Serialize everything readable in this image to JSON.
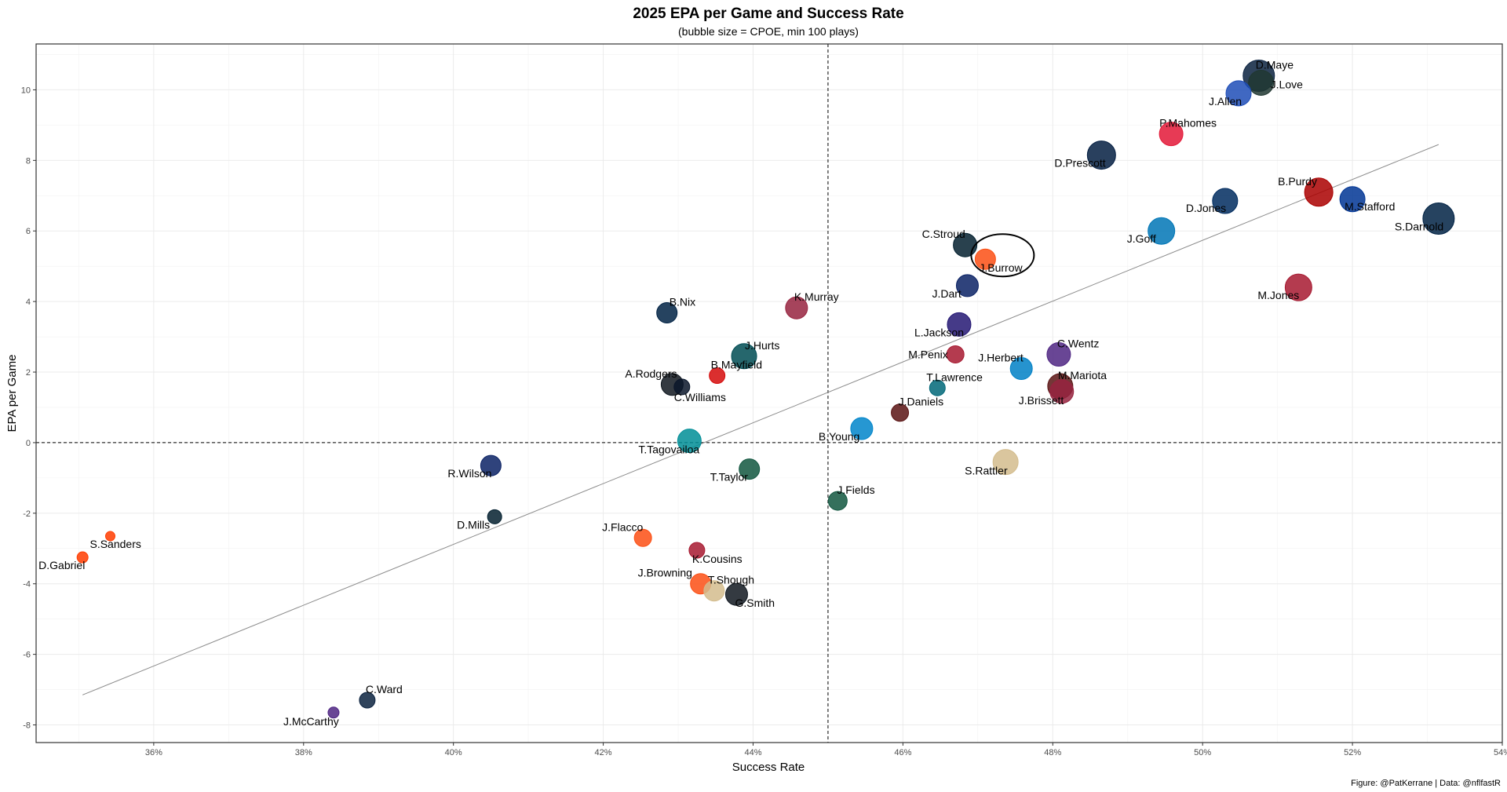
{
  "chart_data": {
    "type": "scatter",
    "title": "2025 EPA per Game and Success Rate",
    "subtitle": "(bubble size = CPOE, min 100 plays)",
    "xlabel": "Success Rate",
    "ylabel": "EPA per Game",
    "caption": "Figure: @PatKerrane | Data: @nflfastR",
    "xlim": [
      0.3443,
      0.54
    ],
    "ylim": [
      -8.5,
      11.3
    ],
    "x_ticks": [
      0.36,
      0.38,
      0.4,
      0.42,
      0.44,
      0.46,
      0.48,
      0.5,
      0.52,
      0.54
    ],
    "x_tick_labels": [
      "36%",
      "38%",
      "40%",
      "42%",
      "44%",
      "46%",
      "48%",
      "50%",
      "52%",
      "54%"
    ],
    "y_ticks": [
      -8,
      -6,
      -4,
      -2,
      0,
      2,
      4,
      6,
      8,
      10
    ],
    "y_tick_labels": [
      "-8",
      "-6",
      "-4",
      "-2",
      "0",
      "2",
      "4",
      "6",
      "8",
      "10"
    ],
    "grid": true,
    "reference_lines": {
      "vertical_x": 0.45,
      "horizontal_y": 0,
      "style": "dashed"
    },
    "trend_line": {
      "x": [
        0.3505,
        0.5315
      ],
      "y": [
        -7.15,
        8.45
      ]
    },
    "highlight": {
      "name": "J.Burrow",
      "shape": "ellipse"
    },
    "points": [
      {
        "name": "D.Maye",
        "x": 0.5075,
        "y": 10.4,
        "size": 20,
        "color": "#0B2240",
        "label_dx": -4,
        "label_dy": -9
      },
      {
        "name": "J.Love",
        "x": 0.5078,
        "y": 10.2,
        "size": 16,
        "color": "#203731",
        "label_dx": 12,
        "label_dy": 7
      },
      {
        "name": "J.Allen",
        "x": 0.5048,
        "y": 9.9,
        "size": 16,
        "color": "#1E4DB7",
        "label_dx": -38,
        "label_dy": 15
      },
      {
        "name": "P.Mahomes",
        "x": 0.4958,
        "y": 8.75,
        "size": 15,
        "color": "#E31837",
        "label_dx": -15,
        "label_dy": -9
      },
      {
        "name": "D.Prescott",
        "x": 0.4865,
        "y": 8.15,
        "size": 18,
        "color": "#041E42",
        "label_dx": -60,
        "label_dy": 15
      },
      {
        "name": "B.Purdy",
        "x": 0.5155,
        "y": 7.1,
        "size": 18,
        "color": "#AA0000",
        "label_dx": -52,
        "label_dy": -9
      },
      {
        "name": "M.Stafford",
        "x": 0.52,
        "y": 6.9,
        "size": 16,
        "color": "#003594",
        "label_dx": -10,
        "label_dy": 14
      },
      {
        "name": "D.Jones",
        "x": 0.503,
        "y": 6.85,
        "size": 16,
        "color": "#002C5F",
        "label_dx": -50,
        "label_dy": 14
      },
      {
        "name": "S.Darnold",
        "x": 0.5315,
        "y": 6.35,
        "size": 20,
        "color": "#002244",
        "label_dx": -56,
        "label_dy": 15
      },
      {
        "name": "J.Goff",
        "x": 0.4945,
        "y": 6.0,
        "size": 17,
        "color": "#0076B6",
        "label_dx": -44,
        "label_dy": 15
      },
      {
        "name": "C.Stroud",
        "x": 0.4683,
        "y": 5.6,
        "size": 15,
        "color": "#03202F",
        "label_dx": -55,
        "label_dy": -9
      },
      {
        "name": "J.Burrow",
        "x": 0.471,
        "y": 5.2,
        "size": 13,
        "color": "#FB4F14",
        "label_dx": -8,
        "label_dy": 16
      },
      {
        "name": "M.Jones",
        "x": 0.5128,
        "y": 4.4,
        "size": 17,
        "color": "#A71930",
        "label_dx": -52,
        "label_dy": 15
      },
      {
        "name": "J.Dart",
        "x": 0.4686,
        "y": 4.45,
        "size": 14,
        "color": "#0B2265",
        "label_dx": -45,
        "label_dy": 15
      },
      {
        "name": "K.Murray",
        "x": 0.4458,
        "y": 3.82,
        "size": 14,
        "color": "#97233F",
        "label_dx": -3,
        "label_dy": -9
      },
      {
        "name": "B.Nix",
        "x": 0.4285,
        "y": 3.68,
        "size": 13,
        "color": "#002244",
        "label_dx": 3,
        "label_dy": -9
      },
      {
        "name": "L.Jackson",
        "x": 0.4675,
        "y": 3.35,
        "size": 15,
        "color": "#241773",
        "label_dx": -57,
        "label_dy": 15
      },
      {
        "name": "J.Hurts",
        "x": 0.4388,
        "y": 2.45,
        "size": 16,
        "color": "#004C54",
        "label_dx": 1,
        "label_dy": -9
      },
      {
        "name": "M.Penix",
        "x": 0.467,
        "y": 2.5,
        "size": 11,
        "color": "#A71930",
        "label_dx": -60,
        "label_dy": 5
      },
      {
        "name": "C.Wentz",
        "x": 0.4808,
        "y": 2.5,
        "size": 15,
        "color": "#4F2683",
        "label_dx": -2,
        "label_dy": -9
      },
      {
        "name": "J.Herbert",
        "x": 0.4758,
        "y": 2.1,
        "size": 14,
        "color": "#0080C6",
        "label_dx": -55,
        "label_dy": -9
      },
      {
        "name": "B.Mayfield",
        "x": 0.4352,
        "y": 1.9,
        "size": 10,
        "color": "#D50A0A",
        "label_dx": -8,
        "label_dy": -9
      },
      {
        "name": "A.Rodgers",
        "x": 0.4292,
        "y": 1.65,
        "size": 14,
        "color": "#101820",
        "label_dx": -60,
        "label_dy": -9
      },
      {
        "name": "C.Williams",
        "x": 0.4305,
        "y": 1.58,
        "size": 10,
        "color": "#0B162A",
        "label_dx": -10,
        "label_dy": 18
      },
      {
        "name": "M.Mariota",
        "x": 0.481,
        "y": 1.6,
        "size": 16,
        "color": "#5A1414",
        "label_dx": -3,
        "label_dy": -9
      },
      {
        "name": "J.Brissett",
        "x": 0.4812,
        "y": 1.45,
        "size": 15,
        "color": "#97233F",
        "label_dx": -55,
        "label_dy": 16
      },
      {
        "name": "T.Lawrence",
        "x": 0.4646,
        "y": 1.55,
        "size": 10,
        "color": "#006778",
        "label_dx": -14,
        "label_dy": -9
      },
      {
        "name": "J.Daniels",
        "x": 0.4596,
        "y": 0.85,
        "size": 11,
        "color": "#5A1414",
        "label_dx": -2,
        "label_dy": -9
      },
      {
        "name": "B.Young",
        "x": 0.4545,
        "y": 0.4,
        "size": 14,
        "color": "#0085CA",
        "label_dx": -55,
        "label_dy": 15
      },
      {
        "name": "T.Tagovailoa",
        "x": 0.4315,
        "y": 0.05,
        "size": 15,
        "color": "#008E97",
        "label_dx": -65,
        "label_dy": 16
      },
      {
        "name": "R.Wilson",
        "x": 0.405,
        "y": -0.65,
        "size": 13,
        "color": "#0B2265",
        "label_dx": -55,
        "label_dy": 15
      },
      {
        "name": "T.Taylor",
        "x": 0.4395,
        "y": -0.75,
        "size": 13,
        "color": "#125740",
        "label_dx": -50,
        "label_dy": 15
      },
      {
        "name": "S.Rattler",
        "x": 0.4737,
        "y": -0.55,
        "size": 16,
        "color": "#D3BC8D",
        "label_dx": -52,
        "label_dy": 16
      },
      {
        "name": "J.Fields",
        "x": 0.4513,
        "y": -1.65,
        "size": 12,
        "color": "#125740",
        "label_dx": -1,
        "label_dy": -9
      },
      {
        "name": "D.Mills",
        "x": 0.4055,
        "y": -2.1,
        "size": 9,
        "color": "#03202F",
        "label_dx": -48,
        "label_dy": 15
      },
      {
        "name": "J.Flacco",
        "x": 0.4253,
        "y": -2.7,
        "size": 11,
        "color": "#FB4F14",
        "label_dx": -52,
        "label_dy": -9
      },
      {
        "name": "K.Cousins",
        "x": 0.4325,
        "y": -3.05,
        "size": 10,
        "color": "#A71930",
        "label_dx": -6,
        "label_dy": 16
      },
      {
        "name": "S.Sanders",
        "x": 0.3542,
        "y": -2.65,
        "size": 6,
        "color": "#FF3C00",
        "label_dx": -26,
        "label_dy": 15
      },
      {
        "name": "D.Gabriel",
        "x": 0.3505,
        "y": -3.25,
        "size": 7,
        "color": "#FF3C00",
        "label_dx": -56,
        "label_dy": 15
      },
      {
        "name": "J.Browning",
        "x": 0.433,
        "y": -4.0,
        "size": 13,
        "color": "#FB4F14",
        "label_dx": -80,
        "label_dy": -9
      },
      {
        "name": "T.Shough",
        "x": 0.4348,
        "y": -4.2,
        "size": 13,
        "color": "#D3BC8D",
        "label_dx": -8,
        "label_dy": -9
      },
      {
        "name": "G.Smith",
        "x": 0.4378,
        "y": -4.3,
        "size": 14,
        "color": "#101820",
        "label_dx": -2,
        "label_dy": 16
      },
      {
        "name": "C.Ward",
        "x": 0.3885,
        "y": -7.3,
        "size": 10,
        "color": "#0C2340",
        "label_dx": -2,
        "label_dy": -9
      },
      {
        "name": "J.McCarthy",
        "x": 0.384,
        "y": -7.65,
        "size": 7,
        "color": "#4F2683",
        "label_dx": -64,
        "label_dy": 16
      }
    ]
  }
}
